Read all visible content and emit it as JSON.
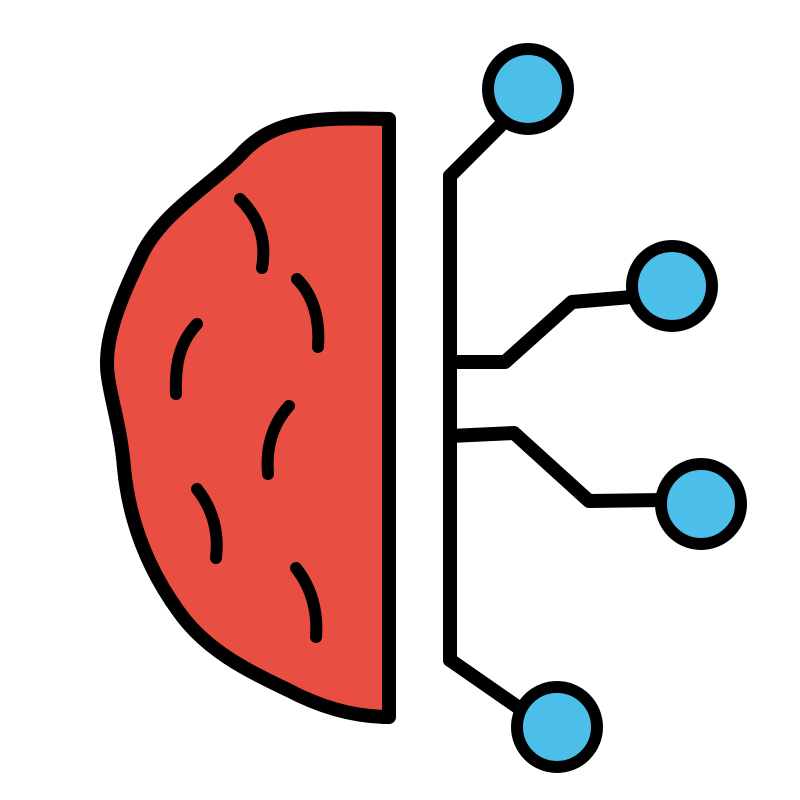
{
  "icon": {
    "name": "brain-circuit-icon",
    "parts": [
      "brain-half",
      "circuit-trunk",
      "circuit-node"
    ]
  },
  "colors": {
    "background": "#ffffff",
    "brain_fill": "#e84f42",
    "node_fill": "#4bbfe9",
    "outline": "#000000"
  }
}
